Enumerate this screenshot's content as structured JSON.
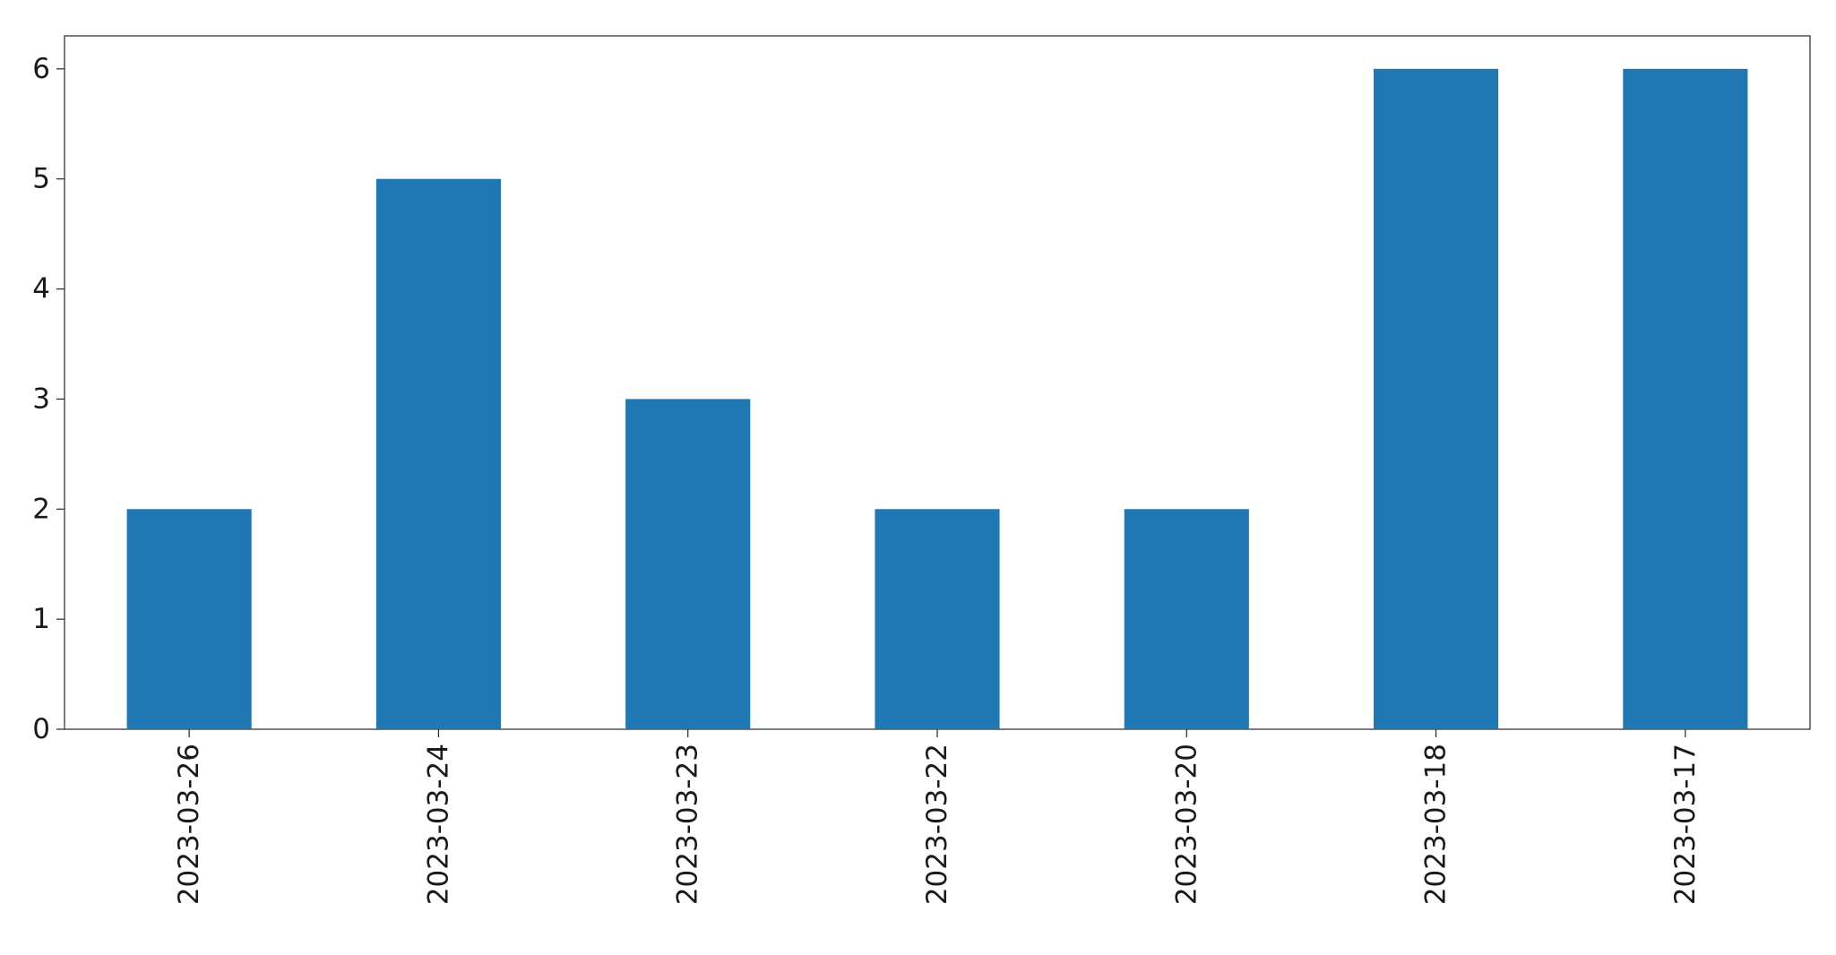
{
  "colors": {
    "bar": "#1f77b4",
    "axis": "#262626",
    "background": "#ffffff"
  },
  "chart_data": {
    "type": "bar",
    "categories": [
      "2023-03-26",
      "2023-03-24",
      "2023-03-23",
      "2023-03-22",
      "2023-03-20",
      "2023-03-18",
      "2023-03-17"
    ],
    "values": [
      2,
      5,
      3,
      2,
      2,
      6,
      6
    ],
    "ylim": [
      0,
      6.3
    ],
    "yticks": [
      0,
      1,
      2,
      3,
      4,
      5,
      6
    ],
    "grid": false,
    "legend": false
  }
}
